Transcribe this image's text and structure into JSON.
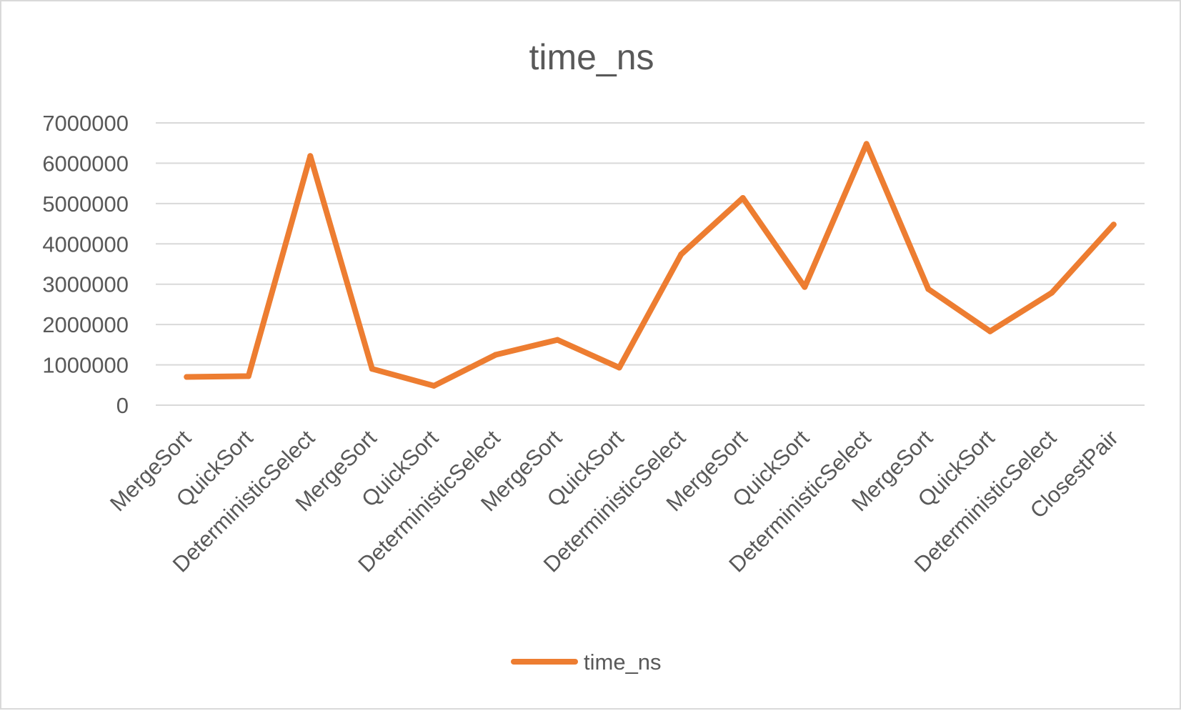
{
  "chart_data": {
    "type": "line",
    "title": "time_ns",
    "xlabel": "",
    "ylabel": "",
    "ylim": [
      0,
      7000000
    ],
    "yticks": [
      0,
      1000000,
      2000000,
      3000000,
      4000000,
      5000000,
      6000000,
      7000000
    ],
    "ytick_labels": [
      "0",
      "1000000",
      "2000000",
      "3000000",
      "4000000",
      "5000000",
      "6000000",
      "7000000"
    ],
    "grid": true,
    "legend": "bottom",
    "categories": [
      "MergeSort",
      "QuickSort",
      "DeterministicSelect",
      "MergeSort",
      "QuickSort",
      "DeterministicSelect",
      "MergeSort",
      "QuickSort",
      "DeterministicSelect",
      "MergeSort",
      "QuickSort",
      "DeterministicSelect",
      "MergeSort",
      "QuickSort",
      "DeterministicSelect",
      "ClosestPair"
    ],
    "series": [
      {
        "name": "time_ns",
        "color": "#ed7d31",
        "values": [
          700000,
          720000,
          6180000,
          900000,
          480000,
          1250000,
          1620000,
          930000,
          3740000,
          5140000,
          2930000,
          6480000,
          2880000,
          1830000,
          2790000,
          4480000
        ]
      }
    ]
  }
}
